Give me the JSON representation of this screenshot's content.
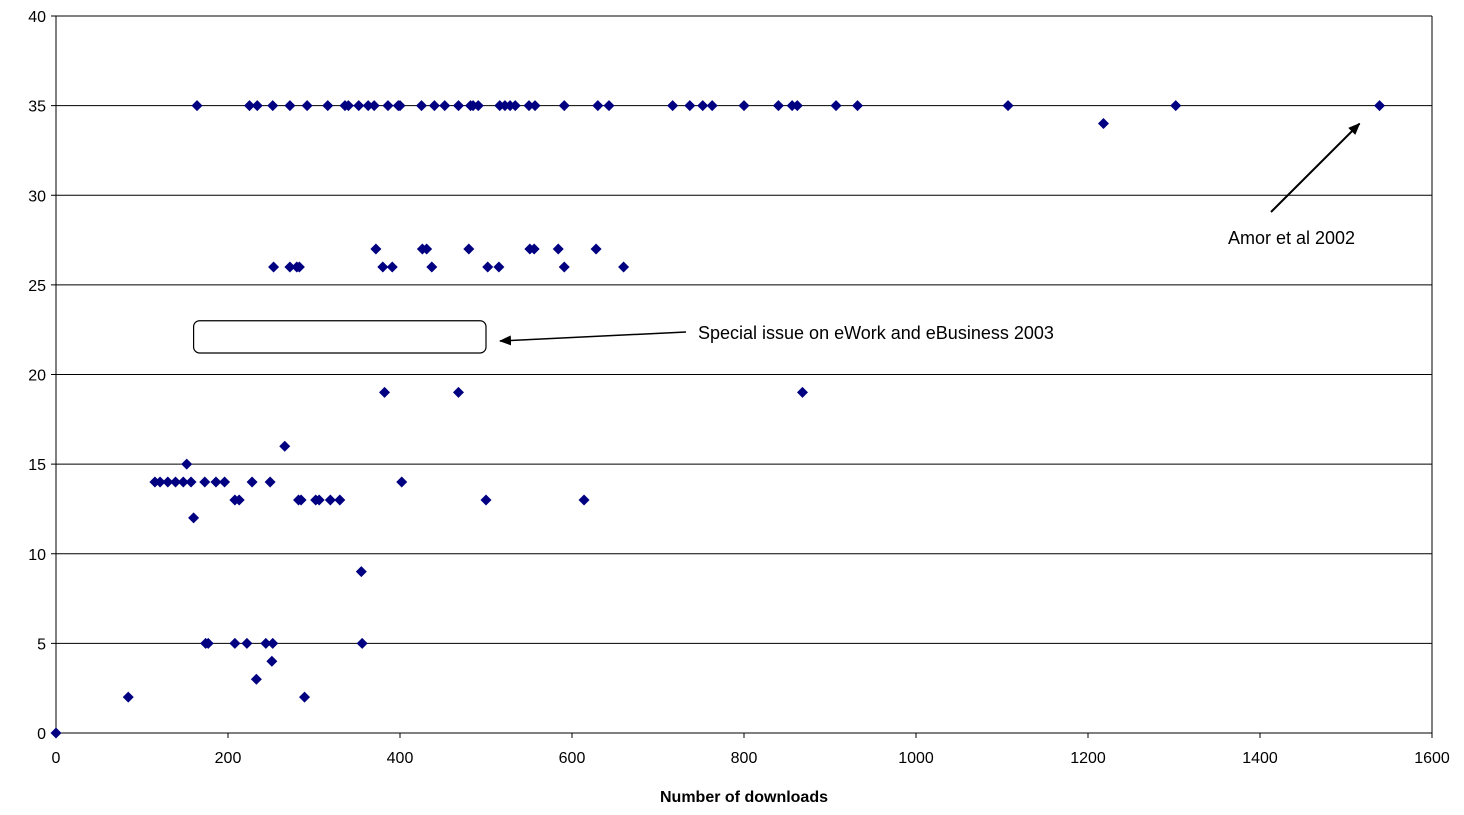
{
  "chart_data": {
    "type": "scatter",
    "title": "",
    "xlabel": "Number of downloads",
    "ylabel": "",
    "xlim": [
      0,
      1600
    ],
    "ylim": [
      0,
      40
    ],
    "x_ticks": [
      0,
      200,
      400,
      600,
      800,
      1000,
      1200,
      1400,
      1600
    ],
    "y_ticks": [
      0,
      5,
      10,
      15,
      20,
      25,
      30,
      35,
      40
    ],
    "x_tick_labels": [
      "0",
      "200",
      "400",
      "600",
      "800",
      "1000",
      "1200",
      "1400",
      "1600"
    ],
    "y_tick_labels": [
      "0",
      "5",
      "10",
      "15",
      "20",
      "25",
      "30",
      "35",
      "40"
    ],
    "grid": "horizontal",
    "marker": "diamond",
    "marker_color": "#000080",
    "points": [
      [
        0,
        0
      ],
      [
        84,
        2
      ],
      [
        289,
        2
      ],
      [
        233,
        3
      ],
      [
        251,
        4
      ],
      [
        174,
        5
      ],
      [
        177,
        5
      ],
      [
        208,
        5
      ],
      [
        222,
        5
      ],
      [
        244,
        5
      ],
      [
        252,
        5
      ],
      [
        356,
        5
      ],
      [
        355,
        9
      ],
      [
        160,
        12
      ],
      [
        208,
        13
      ],
      [
        213,
        13
      ],
      [
        282,
        13
      ],
      [
        285,
        13
      ],
      [
        302,
        13
      ],
      [
        306,
        13
      ],
      [
        319,
        13
      ],
      [
        330,
        13
      ],
      [
        500,
        13
      ],
      [
        614,
        13
      ],
      [
        115,
        14
      ],
      [
        121,
        14
      ],
      [
        130,
        14
      ],
      [
        139,
        14
      ],
      [
        148,
        14
      ],
      [
        157,
        14
      ],
      [
        173,
        14
      ],
      [
        186,
        14
      ],
      [
        196,
        14
      ],
      [
        228,
        14
      ],
      [
        249,
        14
      ],
      [
        402,
        14
      ],
      [
        152,
        15
      ],
      [
        266,
        16
      ],
      [
        382,
        19
      ],
      [
        468,
        19
      ],
      [
        868,
        19
      ],
      [
        253,
        26
      ],
      [
        272,
        26
      ],
      [
        280,
        26
      ],
      [
        283,
        26
      ],
      [
        380,
        26
      ],
      [
        391,
        26
      ],
      [
        437,
        26
      ],
      [
        502,
        26
      ],
      [
        515,
        26
      ],
      [
        591,
        26
      ],
      [
        660,
        26
      ],
      [
        372,
        27
      ],
      [
        426,
        27
      ],
      [
        431,
        27
      ],
      [
        480,
        27
      ],
      [
        551,
        27
      ],
      [
        556,
        27
      ],
      [
        584,
        27
      ],
      [
        628,
        27
      ],
      [
        1218,
        34
      ],
      [
        164,
        35
      ],
      [
        225,
        35
      ],
      [
        234,
        35
      ],
      [
        252,
        35
      ],
      [
        272,
        35
      ],
      [
        292,
        35
      ],
      [
        316,
        35
      ],
      [
        336,
        35
      ],
      [
        340,
        35
      ],
      [
        352,
        35
      ],
      [
        363,
        35
      ],
      [
        370,
        35
      ],
      [
        386,
        35
      ],
      [
        398,
        35
      ],
      [
        400,
        35
      ],
      [
        425,
        35
      ],
      [
        440,
        35
      ],
      [
        452,
        35
      ],
      [
        468,
        35
      ],
      [
        482,
        35
      ],
      [
        485,
        35
      ],
      [
        491,
        35
      ],
      [
        516,
        35
      ],
      [
        522,
        35
      ],
      [
        528,
        35
      ],
      [
        534,
        35
      ],
      [
        550,
        35
      ],
      [
        557,
        35
      ],
      [
        591,
        35
      ],
      [
        630,
        35
      ],
      [
        643,
        35
      ],
      [
        717,
        35
      ],
      [
        737,
        35
      ],
      [
        752,
        35
      ],
      [
        763,
        35
      ],
      [
        800,
        35
      ],
      [
        840,
        35
      ],
      [
        856,
        35
      ],
      [
        862,
        35
      ],
      [
        907,
        35
      ],
      [
        932,
        35
      ],
      [
        1107,
        35
      ],
      [
        1302,
        35
      ],
      [
        1539,
        35
      ]
    ],
    "annotations": [
      {
        "text": "Amor et al 2002",
        "target": [
          1539,
          35
        ]
      },
      {
        "text": "Special issue on eWork and eBusiness 2003",
        "box_x": [
          160,
          500
        ],
        "box_y": [
          21.2,
          23
        ]
      }
    ]
  }
}
